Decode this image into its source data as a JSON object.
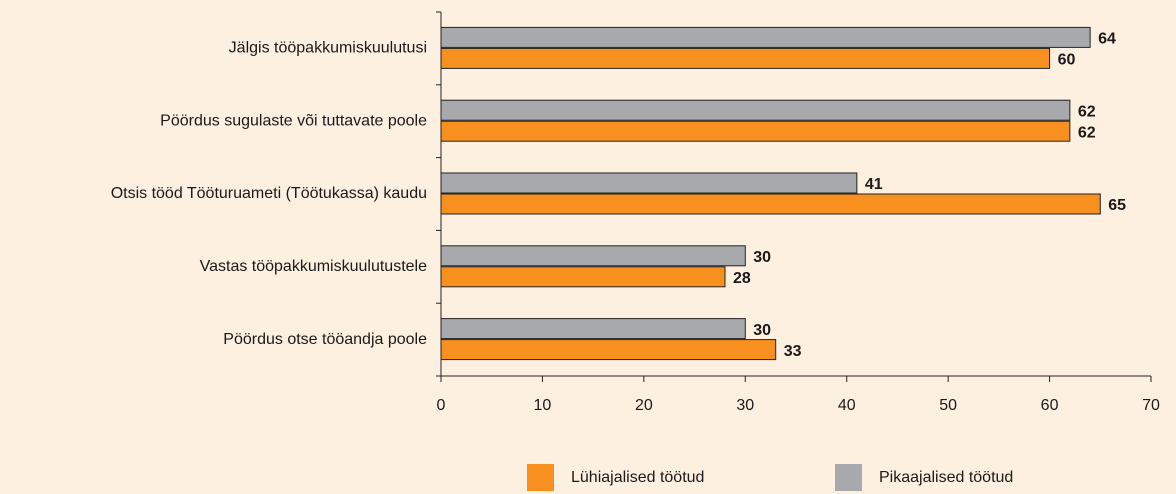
{
  "chart_data": {
    "type": "hbar",
    "categories": [
      "Jälgis tööpakkumiskuulutusi",
      "Pöördus sugulaste või tuttavate poole",
      "Otsis tööd Tööturuameti (Töötukassa) kaudu",
      "Vastas tööpakkumiskuulutustele",
      "Pöördus otse tööandja poole"
    ],
    "series": [
      {
        "name": "Lühiajalised töötud",
        "color": "#f7901e",
        "values": [
          60,
          62,
          65,
          28,
          33
        ]
      },
      {
        "name": "Pikaajalised töötud",
        "color": "#a7a9ac",
        "values": [
          64,
          62,
          41,
          30,
          30
        ]
      }
    ],
    "xlim": [
      0,
      70
    ],
    "xticks": [
      0,
      10,
      20,
      30,
      40,
      50,
      60,
      70
    ]
  }
}
